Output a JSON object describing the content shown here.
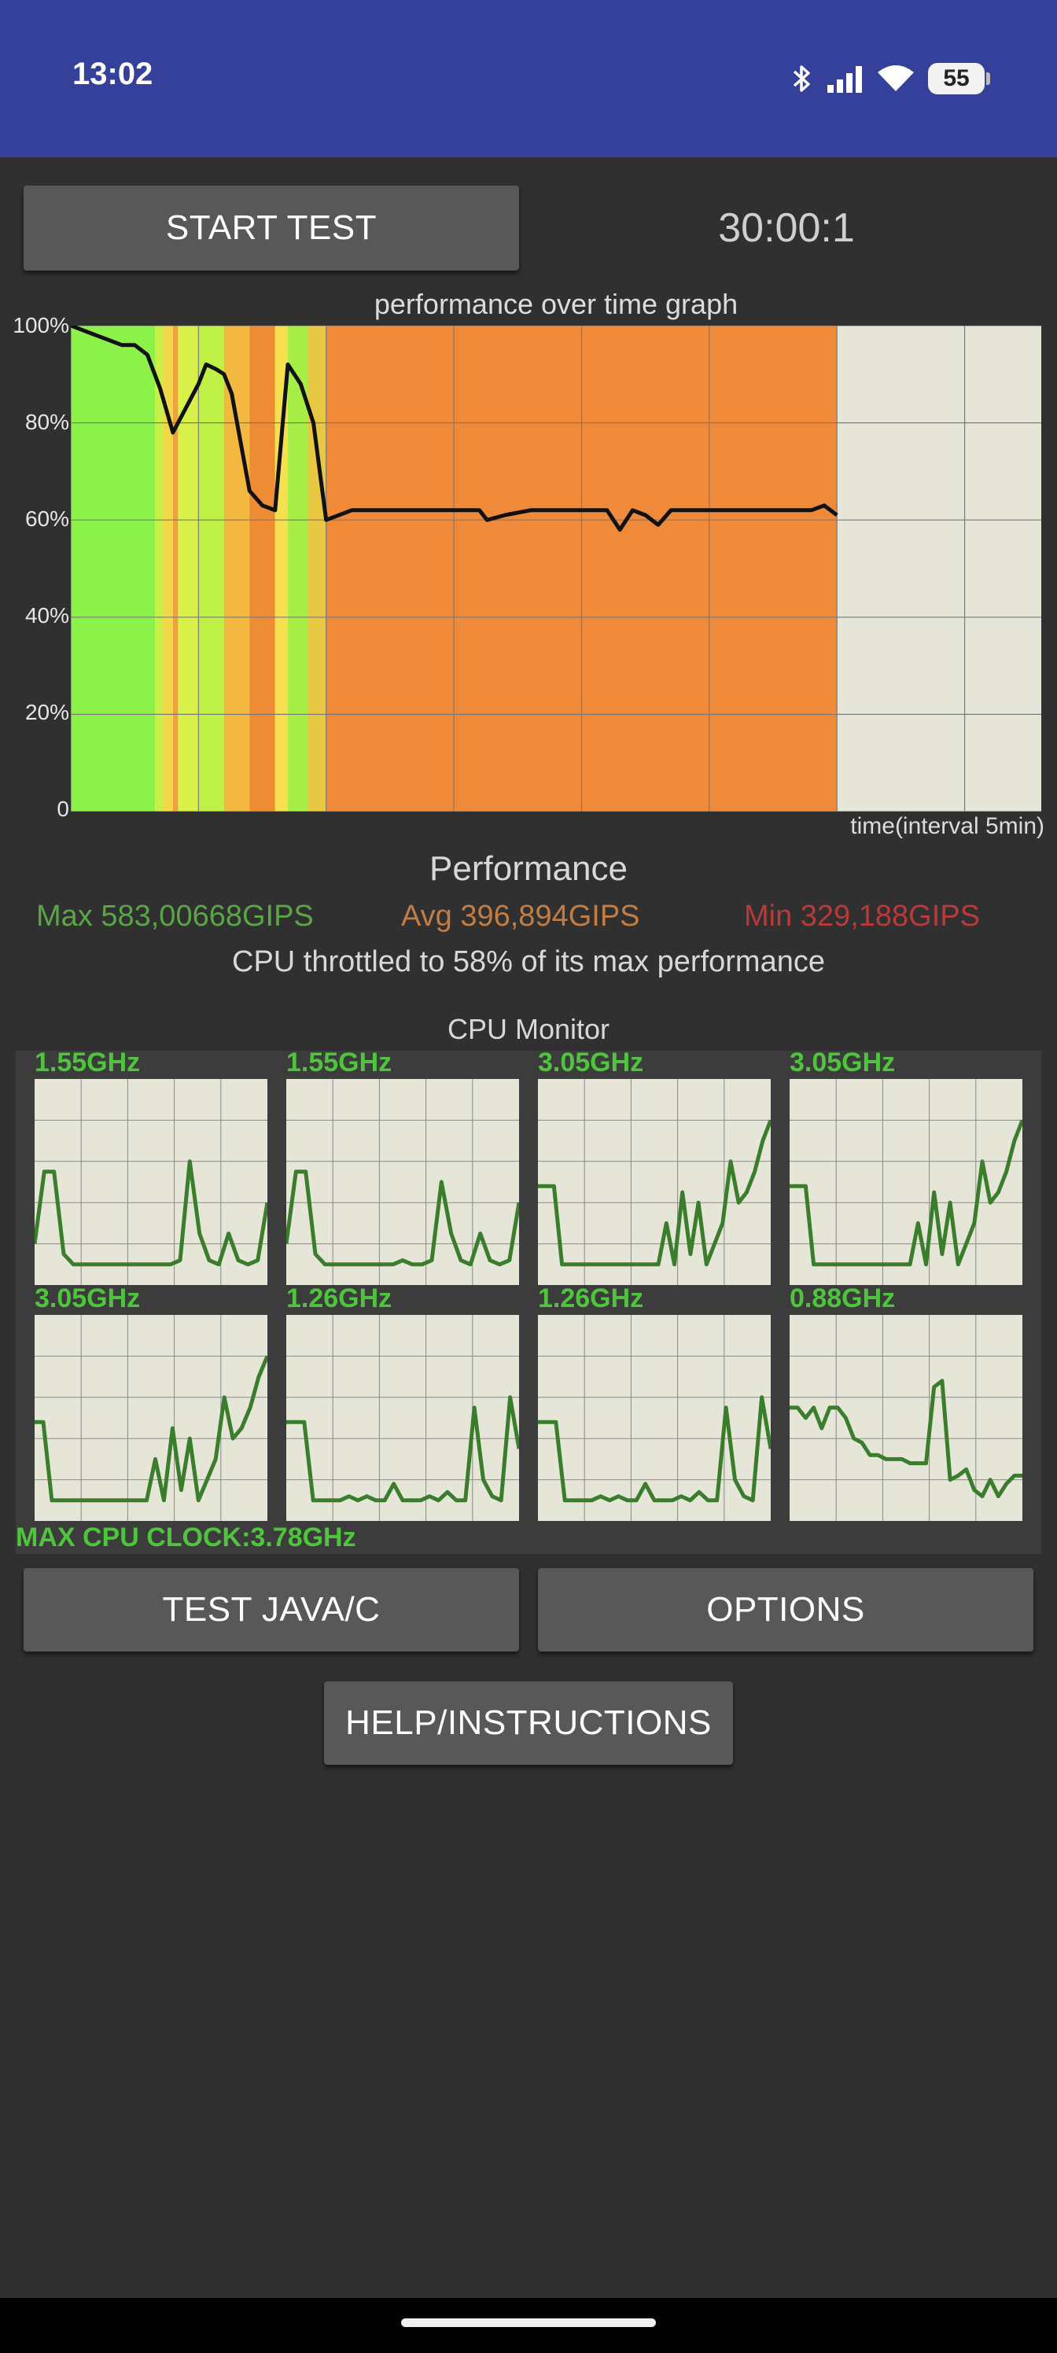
{
  "status_bar": {
    "time": "13:02",
    "icons": [
      "bluetooth-icon",
      "signal-icon",
      "wifi-icon"
    ],
    "battery": "55"
  },
  "controls": {
    "start_test": "START TEST",
    "timer": "30:00:1",
    "test_java_c": "TEST JAVA/C",
    "options": "OPTIONS",
    "help": "HELP/INSTRUCTIONS"
  },
  "chart_data": {
    "type": "line",
    "title": "performance over time graph",
    "xlabel": "time(interval 5min)",
    "ylabel": "",
    "y_tick_labels": [
      "100%",
      "80%",
      "60%",
      "40%",
      "20%",
      "0"
    ],
    "ylim": [
      0,
      100
    ],
    "xlim": [
      0,
      38
    ],
    "x_unit": "minutes",
    "grid": true,
    "series": [
      {
        "values_x": [
          0,
          0.5,
          1,
          2,
          2.5,
          3,
          3.5,
          4,
          5,
          5.3,
          5.7,
          6,
          6.3,
          7,
          7.5,
          8,
          8.5,
          9,
          9.5,
          10,
          11,
          12,
          13,
          14,
          15,
          16,
          16.3,
          17,
          18,
          19,
          20,
          21,
          21.5,
          22,
          22.5,
          23,
          23.5,
          24,
          25,
          26,
          27,
          28,
          29,
          29.5,
          30
        ],
        "values_y": [
          100,
          99,
          98,
          96,
          96,
          94,
          87,
          78,
          88,
          92,
          91,
          90,
          86,
          66,
          63,
          62,
          92,
          88,
          80,
          60,
          62,
          62,
          62,
          62,
          62,
          62,
          60,
          61,
          62,
          62,
          62,
          62,
          58,
          62,
          61,
          59,
          62,
          62,
          62,
          62,
          62,
          62,
          62,
          63,
          61
        ]
      }
    ],
    "heatmap_bands": [
      {
        "x0": 0,
        "x1": 3.3,
        "color": "#8cf24a"
      },
      {
        "x0": 3.3,
        "x1": 3.6,
        "color": "#c8ef46"
      },
      {
        "x0": 3.6,
        "x1": 4.0,
        "color": "#f2d848"
      },
      {
        "x0": 4.0,
        "x1": 4.2,
        "color": "#f0a03c"
      },
      {
        "x0": 4.2,
        "x1": 5.0,
        "color": "#d8f048"
      },
      {
        "x0": 5.0,
        "x1": 6.0,
        "color": "#bff046"
      },
      {
        "x0": 6.0,
        "x1": 7.0,
        "color": "#f2b840"
      },
      {
        "x0": 7.0,
        "x1": 8.0,
        "color": "#ee8c36"
      },
      {
        "x0": 8.0,
        "x1": 8.5,
        "color": "#f6e050"
      },
      {
        "x0": 8.5,
        "x1": 9.3,
        "color": "#a6ee46"
      },
      {
        "x0": 9.3,
        "x1": 10,
        "color": "#e8c842"
      },
      {
        "x0": 10,
        "x1": 30,
        "color": "#ee8a3a"
      }
    ]
  },
  "performance": {
    "heading": "Performance",
    "max": "Max 583,00668GIPS",
    "avg": "Avg 396,894GIPS",
    "min": "Min 329,188GIPS",
    "throttle": "CPU throttled to 58% of its max performance",
    "colors": {
      "max": "#5aa647",
      "avg": "#c27d44",
      "min": "#b83a3a"
    }
  },
  "cpu_monitor": {
    "title": "CPU Monitor",
    "max_clock": "MAX CPU CLOCK:3.78GHz",
    "cores": [
      {
        "freq": "1.55GHz",
        "values": [
          20,
          55,
          55,
          15,
          10,
          10,
          10,
          10,
          10,
          10,
          10,
          10,
          10,
          10,
          10,
          12,
          60,
          25,
          12,
          10,
          25,
          12,
          10,
          12,
          40
        ]
      },
      {
        "freq": "1.55GHz",
        "values": [
          20,
          55,
          55,
          15,
          10,
          10,
          10,
          10,
          10,
          10,
          10,
          10,
          12,
          10,
          10,
          12,
          50,
          25,
          12,
          10,
          25,
          12,
          10,
          12,
          40
        ]
      },
      {
        "freq": "3.05GHz",
        "values": [
          48,
          48,
          48,
          10,
          10,
          10,
          10,
          10,
          10,
          10,
          10,
          10,
          10,
          10,
          10,
          10,
          30,
          10,
          45,
          15,
          40,
          10,
          20,
          30,
          60,
          40,
          45,
          55,
          70,
          80
        ]
      },
      {
        "freq": "3.05GHz",
        "values": [
          48,
          48,
          48,
          10,
          10,
          10,
          10,
          10,
          10,
          10,
          10,
          10,
          10,
          10,
          10,
          10,
          30,
          10,
          45,
          15,
          40,
          10,
          20,
          30,
          60,
          40,
          45,
          55,
          70,
          80
        ]
      },
      {
        "freq": "3.05GHz",
        "values": [
          48,
          48,
          10,
          10,
          10,
          10,
          10,
          10,
          10,
          10,
          10,
          10,
          10,
          10,
          30,
          10,
          45,
          15,
          40,
          10,
          20,
          30,
          60,
          40,
          45,
          55,
          70,
          80
        ]
      },
      {
        "freq": "1.26GHz",
        "values": [
          48,
          48,
          48,
          10,
          10,
          10,
          10,
          12,
          10,
          12,
          10,
          10,
          18,
          10,
          10,
          10,
          12,
          10,
          14,
          10,
          10,
          55,
          20,
          12,
          10,
          60,
          35
        ]
      },
      {
        "freq": "1.26GHz",
        "values": [
          48,
          48,
          48,
          10,
          10,
          10,
          10,
          12,
          10,
          12,
          10,
          10,
          18,
          10,
          10,
          10,
          12,
          10,
          14,
          10,
          10,
          55,
          20,
          12,
          10,
          60,
          35
        ]
      },
      {
        "freq": "0.88GHz",
        "values": [
          55,
          55,
          50,
          55,
          45,
          55,
          55,
          50,
          40,
          38,
          32,
          32,
          30,
          30,
          30,
          28,
          28,
          28,
          65,
          68,
          20,
          22,
          25,
          15,
          12,
          20,
          12,
          18,
          22,
          22
        ]
      }
    ]
  }
}
